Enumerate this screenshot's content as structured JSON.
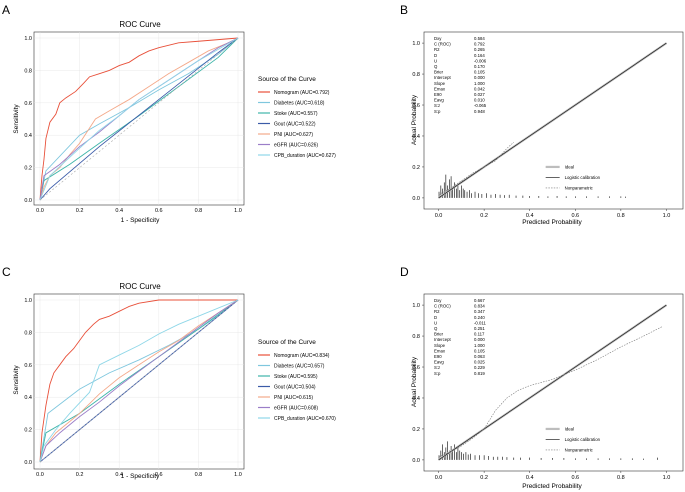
{
  "panels": [
    {
      "letter": "A",
      "chart_data": {
        "type": "line",
        "title": "ROC Curve",
        "xlabel": "1 - Specificity",
        "ylabel": "Sensitivity",
        "xlim": [
          0,
          1
        ],
        "ylim": [
          0,
          1
        ],
        "xticks": [
          "0.0",
          "0.2",
          "0.4",
          "0.6",
          "0.8",
          "1.0"
        ],
        "yticks": [
          "0.0",
          "0.2",
          "0.4",
          "0.6",
          "0.8",
          "1.0"
        ],
        "legend_title": "Source of the Curve",
        "series": [
          {
            "name": "Nomogram (AUC=0.792)",
            "color": "#e8503a",
            "x": [
              0,
              0.01,
              0.02,
              0.03,
              0.05,
              0.08,
              0.1,
              0.13,
              0.18,
              0.22,
              0.25,
              0.3,
              0.35,
              0.4,
              0.45,
              0.5,
              0.55,
              0.6,
              0.7,
              0.8,
              0.9,
              1
            ],
            "y": [
              0,
              0.15,
              0.25,
              0.38,
              0.48,
              0.53,
              0.6,
              0.63,
              0.67,
              0.72,
              0.76,
              0.78,
              0.8,
              0.83,
              0.85,
              0.89,
              0.92,
              0.94,
              0.97,
              0.98,
              0.99,
              1
            ]
          },
          {
            "name": "Diabetes (AUC=0.618)",
            "color": "#7fc7de",
            "x": [
              0,
              0.03,
              0.2,
              0.3,
              0.45,
              0.6,
              0.75,
              0.9,
              1
            ],
            "y": [
              0,
              0.18,
              0.4,
              0.47,
              0.57,
              0.68,
              0.78,
              0.9,
              1
            ]
          },
          {
            "name": "Stoke (AUC=0.557)",
            "color": "#3eb5a9",
            "x": [
              0,
              0.02,
              0.15,
              0.3,
              0.5,
              0.7,
              0.9,
              1
            ],
            "y": [
              0,
              0.12,
              0.22,
              0.35,
              0.52,
              0.7,
              0.88,
              1
            ]
          },
          {
            "name": "Gout (AUC=0.522)",
            "color": "#3b5ba8",
            "x": [
              0,
              0.05,
              0.3,
              0.6,
              0.9,
              1
            ],
            "y": [
              0,
              0.07,
              0.33,
              0.62,
              0.91,
              1
            ]
          },
          {
            "name": "PNI (AUC=0.627)",
            "color": "#f4a98a",
            "x": [
              0,
              0.02,
              0.05,
              0.1,
              0.15,
              0.2,
              0.28,
              0.35,
              0.45,
              0.55,
              0.65,
              0.75,
              0.85,
              0.95,
              1
            ],
            "y": [
              0,
              0.08,
              0.15,
              0.2,
              0.28,
              0.35,
              0.5,
              0.55,
              0.62,
              0.7,
              0.78,
              0.85,
              0.92,
              0.97,
              1
            ]
          },
          {
            "name": "eGFR (AUC=0.626)",
            "color": "#9b7ec8",
            "x": [
              0,
              0.02,
              0.1,
              0.2,
              0.3,
              0.4,
              0.5,
              0.6,
              0.7,
              0.8,
              0.9,
              1
            ],
            "y": [
              0,
              0.15,
              0.22,
              0.33,
              0.42,
              0.52,
              0.62,
              0.7,
              0.78,
              0.86,
              0.94,
              1
            ]
          },
          {
            "name": "CPB_duration (AUC=0.627)",
            "color": "#8fd7e8",
            "x": [
              0,
              0.05,
              0.12,
              0.2,
              0.3,
              0.4,
              0.5,
              0.6,
              0.7,
              0.8,
              0.9,
              1
            ],
            "y": [
              0,
              0.15,
              0.23,
              0.32,
              0.43,
              0.52,
              0.62,
              0.7,
              0.78,
              0.86,
              0.93,
              1
            ]
          },
          {
            "name": "Reference",
            "color": "#aaaaaa",
            "x": [
              0,
              1
            ],
            "y": [
              0,
              1
            ]
          }
        ]
      }
    },
    {
      "letter": "B",
      "chart_data": {
        "type": "line",
        "xlabel": "Predicted Probability",
        "ylabel": "Actual Probability",
        "xlim": [
          -0.02,
          1.02
        ],
        "ylim": [
          -0.02,
          1.02
        ],
        "xticks": [
          "0.0",
          "0.2",
          "0.4",
          "0.6",
          "0.8",
          "1.0"
        ],
        "yticks": [
          "0.0",
          "0.2",
          "0.4",
          "0.6",
          "0.8",
          "1.0"
        ],
        "stats": [
          [
            "Dxy",
            "0.584"
          ],
          [
            "C (ROC)",
            "0.792"
          ],
          [
            "R2",
            "0.265"
          ],
          [
            "D",
            "0.164"
          ],
          [
            "U",
            "-0.006"
          ],
          [
            "Q",
            "0.170"
          ],
          [
            "Brier",
            "0.105"
          ],
          [
            "Intercept",
            "0.000"
          ],
          [
            "Slope",
            "1.000"
          ],
          [
            "Emax",
            "0.042"
          ],
          [
            "E90",
            "0.027"
          ],
          [
            "Eavg",
            "0.010"
          ],
          [
            "S:z",
            "-0.065"
          ],
          [
            "S:p",
            "0.948"
          ]
        ],
        "legend": [
          "Ideal",
          "Logistic calibration",
          "Nonparametric"
        ],
        "series": [
          {
            "name": "Ideal",
            "x": [
              0,
              1
            ],
            "y": [
              0,
              1
            ]
          },
          {
            "name": "Logistic calibration",
            "x": [
              0,
              1
            ],
            "y": [
              0,
              1
            ]
          },
          {
            "name": "Nonparametric",
            "x": [
              0,
              0.05,
              0.1,
              0.15,
              0.2,
              0.25,
              0.3,
              0.33
            ],
            "y": [
              0.02,
              0.06,
              0.11,
              0.16,
              0.2,
              0.24,
              0.32,
              0.36
            ]
          }
        ],
        "rug": [
          0.002,
          0.01,
          0.018,
          0.025,
          0.032,
          0.04,
          0.048,
          0.055,
          0.062,
          0.07,
          0.078,
          0.085,
          0.093,
          0.1,
          0.108,
          0.115,
          0.125,
          0.135,
          0.145,
          0.16,
          0.175,
          0.19,
          0.21,
          0.23,
          0.25,
          0.27,
          0.29,
          0.31,
          0.34,
          0.37,
          0.4,
          0.44,
          0.48,
          0.52,
          0.56,
          0.6,
          0.65,
          0.7,
          0.75,
          0.8,
          0.82
        ],
        "rug_h": [
          0.04,
          0.08,
          0.06,
          0.1,
          0.15,
          0.08,
          0.12,
          0.14,
          0.07,
          0.1,
          0.06,
          0.09,
          0.05,
          0.08,
          0.06,
          0.05,
          0.04,
          0.05,
          0.03,
          0.04,
          0.03,
          0.025,
          0.03,
          0.02,
          0.025,
          0.02,
          0.018,
          0.02,
          0.015,
          0.015,
          0.012,
          0.012,
          0.01,
          0.012,
          0.01,
          0.01,
          0.01,
          0.01,
          0.01,
          0.01,
          0.008
        ]
      }
    },
    {
      "letter": "C",
      "chart_data": {
        "type": "line",
        "title": "ROC Curve",
        "xlabel": "1 - Specificity",
        "ylabel": "Sensitivity",
        "xlim": [
          0,
          1
        ],
        "ylim": [
          0,
          1
        ],
        "xticks": [
          "0.0",
          "0.2",
          "0.4",
          "0.6",
          "0.8",
          "1.0"
        ],
        "yticks": [
          "0.0",
          "0.2",
          "0.4",
          "0.6",
          "0.8",
          "1.0"
        ],
        "legend_title": "Source of the Curve",
        "series": [
          {
            "name": "Nomogram (AUC=0.834)",
            "color": "#e8503a",
            "x": [
              0,
              0.01,
              0.03,
              0.05,
              0.07,
              0.1,
              0.13,
              0.17,
              0.2,
              0.23,
              0.27,
              0.3,
              0.35,
              0.4,
              0.45,
              0.5,
              0.6,
              0.7,
              0.8,
              1
            ],
            "y": [
              0,
              0.18,
              0.35,
              0.48,
              0.55,
              0.6,
              0.65,
              0.7,
              0.75,
              0.8,
              0.85,
              0.88,
              0.9,
              0.93,
              0.96,
              0.98,
              1,
              1,
              1,
              1
            ]
          },
          {
            "name": "Diabetes (AUC=0.657)",
            "color": "#7fc7de",
            "x": [
              0,
              0.04,
              0.2,
              0.35,
              0.5,
              0.65,
              0.8,
              0.92,
              1
            ],
            "y": [
              0,
              0.3,
              0.45,
              0.55,
              0.63,
              0.72,
              0.82,
              0.92,
              1
            ]
          },
          {
            "name": "Stoke (AUC=0.595)",
            "color": "#3eb5a9",
            "x": [
              0,
              0.03,
              0.2,
              0.4,
              0.6,
              0.8,
              1
            ],
            "y": [
              0,
              0.18,
              0.3,
              0.48,
              0.65,
              0.82,
              1
            ]
          },
          {
            "name": "Gout (AUC=0.504)",
            "color": "#3b5ba8",
            "x": [
              0,
              0.5,
              1
            ],
            "y": [
              0,
              0.5,
              1
            ]
          },
          {
            "name": "PNI (AUC=0.615)",
            "color": "#f4a98a",
            "x": [
              0,
              0.03,
              0.08,
              0.15,
              0.2,
              0.3,
              0.4,
              0.5,
              0.6,
              0.7,
              0.8,
              0.9,
              1
            ],
            "y": [
              0,
              0.1,
              0.18,
              0.25,
              0.3,
              0.42,
              0.52,
              0.6,
              0.68,
              0.75,
              0.84,
              0.92,
              1
            ]
          },
          {
            "name": "eGFR (AUC=0.608)",
            "color": "#9b7ec8",
            "x": [
              0,
              0.03,
              0.1,
              0.2,
              0.3,
              0.4,
              0.5,
              0.6,
              0.7,
              0.8,
              0.9,
              1
            ],
            "y": [
              0,
              0.1,
              0.18,
              0.28,
              0.37,
              0.47,
              0.56,
              0.65,
              0.74,
              0.83,
              0.92,
              1
            ]
          },
          {
            "name": "CPB_duration (AUC=0.670)",
            "color": "#8fd7e8",
            "x": [
              0,
              0.02,
              0.08,
              0.15,
              0.25,
              0.3,
              0.4,
              0.5,
              0.6,
              0.7,
              0.8,
              0.9,
              1
            ],
            "y": [
              0,
              0.1,
              0.2,
              0.3,
              0.43,
              0.6,
              0.66,
              0.72,
              0.79,
              0.85,
              0.9,
              0.95,
              1
            ]
          },
          {
            "name": "Reference",
            "color": "#aaaaaa",
            "x": [
              0,
              1
            ],
            "y": [
              0,
              1
            ]
          }
        ]
      }
    },
    {
      "letter": "D",
      "chart_data": {
        "type": "line",
        "xlabel": "Predicted Probability",
        "ylabel": "Actual Probability",
        "xlim": [
          -0.02,
          1.02
        ],
        "ylim": [
          -0.02,
          1.02
        ],
        "xticks": [
          "0.0",
          "0.2",
          "0.4",
          "0.6",
          "0.8",
          "1.0"
        ],
        "yticks": [
          "0.0",
          "0.2",
          "0.4",
          "0.6",
          "0.8",
          "1.0"
        ],
        "stats": [
          [
            "Dxy",
            "0.667"
          ],
          [
            "C (ROC)",
            "0.834"
          ],
          [
            "R2",
            "0.347"
          ],
          [
            "D",
            "0.240"
          ],
          [
            "U",
            "-0.011"
          ],
          [
            "Q",
            "0.251"
          ],
          [
            "Brier",
            "0.117"
          ],
          [
            "Intercept",
            "0.000"
          ],
          [
            "Slope",
            "1.000"
          ],
          [
            "Emax",
            "0.105"
          ],
          [
            "E90",
            "0.063"
          ],
          [
            "Eavg",
            "0.025"
          ],
          [
            "S:z",
            "0.229"
          ],
          [
            "S:p",
            "0.819"
          ]
        ],
        "legend": [
          "Ideal",
          "Logistic calibration",
          "Nonparametric"
        ],
        "series": [
          {
            "name": "Ideal",
            "x": [
              0,
              1
            ],
            "y": [
              0,
              1
            ]
          },
          {
            "name": "Logistic calibration",
            "x": [
              0,
              1
            ],
            "y": [
              0,
              1
            ]
          },
          {
            "name": "Nonparametric",
            "x": [
              0,
              0.05,
              0.1,
              0.15,
              0.2,
              0.25,
              0.3,
              0.35,
              0.4,
              0.5,
              0.6,
              0.7,
              0.8,
              0.9,
              0.98
            ],
            "y": [
              0.02,
              0.05,
              0.09,
              0.14,
              0.2,
              0.32,
              0.4,
              0.45,
              0.48,
              0.52,
              0.58,
              0.65,
              0.73,
              0.8,
              0.86
            ]
          }
        ],
        "rug": [
          0.002,
          0.01,
          0.018,
          0.025,
          0.032,
          0.04,
          0.048,
          0.055,
          0.062,
          0.07,
          0.078,
          0.085,
          0.093,
          0.1,
          0.11,
          0.12,
          0.13,
          0.14,
          0.16,
          0.18,
          0.2,
          0.22,
          0.24,
          0.26,
          0.28,
          0.3,
          0.33,
          0.36,
          0.4,
          0.45,
          0.5,
          0.55,
          0.6,
          0.65,
          0.7,
          0.75,
          0.8,
          0.85,
          0.9,
          0.96
        ],
        "rug_h": [
          0.03,
          0.06,
          0.1,
          0.05,
          0.08,
          0.12,
          0.06,
          0.09,
          0.07,
          0.1,
          0.05,
          0.08,
          0.06,
          0.05,
          0.04,
          0.05,
          0.035,
          0.04,
          0.03,
          0.03,
          0.03,
          0.025,
          0.02,
          0.02,
          0.02,
          0.018,
          0.015,
          0.015,
          0.015,
          0.012,
          0.012,
          0.012,
          0.01,
          0.01,
          0.01,
          0.01,
          0.01,
          0.01,
          0.008,
          0.015
        ]
      }
    }
  ]
}
